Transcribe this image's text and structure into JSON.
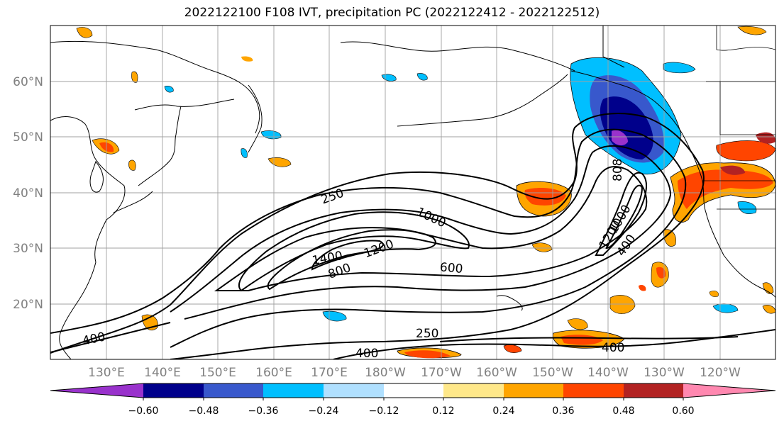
{
  "title": "2022122100 F108 IVT, precipitation PC (2022122412 - 2022122512)",
  "map": {
    "lat_labels": [
      "60°N",
      "50°N",
      "40°N",
      "30°N",
      "20°N"
    ],
    "lon_labels": [
      "130°E",
      "140°E",
      "150°E",
      "160°E",
      "170°E",
      "180°W",
      "170°W",
      "160°W",
      "150°W",
      "140°W",
      "130°W",
      "120°W"
    ],
    "lat_range": [
      10,
      70
    ],
    "lon_range": [
      121,
      248
    ],
    "axis_label_color": "#808080",
    "contour_labels": [
      "250",
      "1000",
      "1200",
      "1400",
      "800",
      "600",
      "808",
      "1200",
      "1000",
      "400",
      "400",
      "250",
      "400",
      "400"
    ]
  },
  "colorbar": {
    "ticks": [
      "−0.60",
      "−0.48",
      "−0.36",
      "−0.24",
      "−0.12",
      "0.12",
      "0.24",
      "0.36",
      "0.48",
      "0.60"
    ],
    "colors": [
      "#9932cc",
      "#00008b",
      "#3858cc",
      "#00bfff",
      "#b0e0ff",
      "#ffffff",
      "#ffe88a",
      "#ffa500",
      "#ff4500",
      "#b22222",
      "#ff88b0"
    ]
  }
}
